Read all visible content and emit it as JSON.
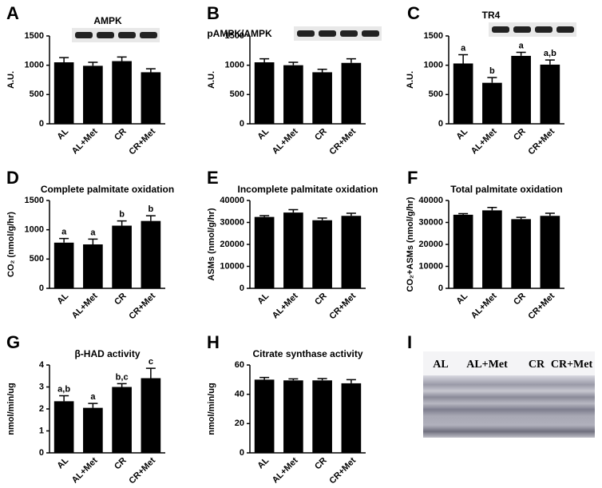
{
  "chart_data": [
    {
      "type": "bar",
      "panel": "A",
      "title": "AMPK",
      "ylabel": "A.U.",
      "categories": [
        "AL",
        "AL+Met",
        "CR",
        "CR+Met"
      ],
      "values": [
        1050,
        990,
        1070,
        880
      ],
      "errors": [
        80,
        60,
        70,
        60
      ],
      "ylim": [
        0,
        1500
      ],
      "yticks": [
        0,
        500,
        1000,
        1500
      ],
      "color": "#000000",
      "blot": true
    },
    {
      "type": "bar",
      "panel": "B",
      "title": "pAMPK/AMPK",
      "ylabel": "A.U.",
      "categories": [
        "AL",
        "AL+Met",
        "CR",
        "CR+Met"
      ],
      "values": [
        1050,
        1000,
        880,
        1040
      ],
      "errors": [
        60,
        50,
        50,
        70
      ],
      "ylim": [
        0,
        1500
      ],
      "yticks": [
        0,
        500,
        1000,
        1500
      ],
      "color": "#000000",
      "blot": true
    },
    {
      "type": "bar",
      "panel": "C",
      "title": "TR4",
      "ylabel": "A.U.",
      "categories": [
        "AL",
        "AL+Met",
        "CR",
        "CR+Met"
      ],
      "values": [
        1030,
        700,
        1160,
        1010
      ],
      "errors": [
        150,
        90,
        60,
        80
      ],
      "annotations": [
        "a",
        "b",
        "a",
        "a,b"
      ],
      "ylim": [
        0,
        1500
      ],
      "yticks": [
        0,
        500,
        1000,
        1500
      ],
      "color": "#000000",
      "blot": true
    },
    {
      "type": "bar",
      "panel": "D",
      "title": "Complete palmitate oxidation",
      "ylabel": "CO₂ (nmol/g/hr)",
      "categories": [
        "AL",
        "AL+Met",
        "CR",
        "CR+Met"
      ],
      "values": [
        780,
        750,
        1070,
        1150
      ],
      "errors": [
        70,
        90,
        80,
        90
      ],
      "annotations": [
        "a",
        "a",
        "b",
        "b"
      ],
      "ylim": [
        0,
        1500
      ],
      "yticks": [
        0,
        500,
        1000,
        1500
      ],
      "color": "#000000"
    },
    {
      "type": "bar",
      "panel": "E",
      "title": "Incomplete palmitate oxidation",
      "ylabel": "ASMs (nmol/g/hr)",
      "categories": [
        "AL",
        "AL+Met",
        "CR",
        "CR+Met"
      ],
      "values": [
        32500,
        34500,
        31000,
        33000
      ],
      "errors": [
        600,
        1300,
        1000,
        1200
      ],
      "ylim": [
        0,
        40000
      ],
      "yticks": [
        0,
        10000,
        20000,
        30000,
        40000
      ],
      "color": "#000000"
    },
    {
      "type": "bar",
      "panel": "F",
      "title": "Total palmitate oxidation",
      "ylabel": "CO₂+ASMs (nmol/g/hr)",
      "categories": [
        "AL",
        "AL+Met",
        "CR",
        "CR+Met"
      ],
      "values": [
        33500,
        35500,
        31500,
        33000
      ],
      "errors": [
        500,
        1300,
        800,
        1200
      ],
      "ylim": [
        0,
        40000
      ],
      "yticks": [
        0,
        10000,
        20000,
        30000,
        40000
      ],
      "color": "#000000"
    },
    {
      "type": "bar",
      "panel": "G",
      "title": "β-HAD activity",
      "ylabel": "nmol/min/ug",
      "categories": [
        "AL",
        "AL+Met",
        "CR",
        "CR+Met"
      ],
      "values": [
        2.35,
        2.05,
        3.0,
        3.4
      ],
      "errors": [
        0.25,
        0.2,
        0.15,
        0.45
      ],
      "annotations": [
        "a,b",
        "a",
        "b,c",
        "c"
      ],
      "ylim": [
        0,
        4
      ],
      "yticks": [
        0,
        1,
        2,
        3,
        4
      ],
      "color": "#000000"
    },
    {
      "type": "bar",
      "panel": "H",
      "title": "Citrate synthase activity",
      "ylabel": "nmol/min/ug",
      "categories": [
        "AL",
        "AL+Met",
        "CR",
        "CR+Met"
      ],
      "values": [
        50,
        49.5,
        49.5,
        47.5
      ],
      "errors": [
        1.5,
        1,
        1.2,
        2.5
      ],
      "ylim": [
        0,
        60
      ],
      "yticks": [
        0,
        20,
        40,
        60
      ],
      "color": "#000000"
    },
    {
      "type": "gel",
      "panel": "I",
      "categories": [
        "AL",
        "AL+Met",
        "CR",
        "CR+Met"
      ]
    }
  ]
}
